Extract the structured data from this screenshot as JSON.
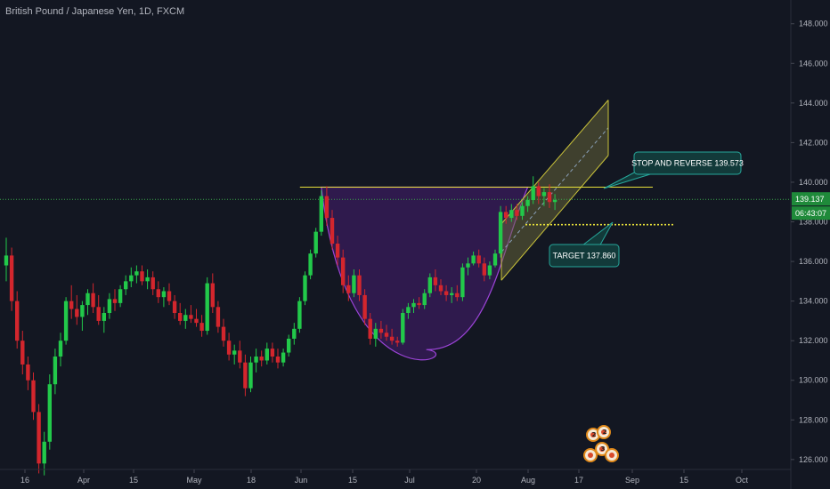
{
  "header": {
    "title": "British Pound / Japanese Yen, 1D, FXCM"
  },
  "colors": {
    "background": "#131722",
    "up": "#26a69a",
    "up_bright": "#22c94a",
    "down": "#ef5350",
    "down_dark": "#d3262d",
    "grid": "#1e222d",
    "cup_fill": "#3a1c5c",
    "cup_stroke": "#9c44d8",
    "channel_fill": "#6b6a3a",
    "channel_stroke": "#c9c23a",
    "resistance": "#e8e13a",
    "target_dotted": "#e8e13a",
    "current_price_line": "#3aa84a",
    "badge_green": "#1f8a3a",
    "callout_bg": "#123a3a",
    "callout_border": "#26a69a"
  },
  "chart_data": {
    "type": "candlestick",
    "y_axis": {
      "ticks": [
        "148.000",
        "146.000",
        "144.000",
        "142.000",
        "140.000",
        "138.000",
        "136.000",
        "134.000",
        "132.000",
        "130.000",
        "128.000",
        "126.000"
      ],
      "range": [
        125.5,
        149.2
      ]
    },
    "x_axis": {
      "ticks": [
        "16",
        "Apr",
        "15",
        "May",
        "18",
        "Jun",
        "15",
        "Jul",
        "20",
        "Aug",
        "17",
        "Sep",
        "15",
        "Oct"
      ]
    },
    "current_price": {
      "value": 139.137,
      "label": "139.137",
      "countdown": "06:43:07"
    },
    "annotations": {
      "stop_and_reverse": {
        "label": "STOP AND REVERSE 139.573",
        "value": 139.573
      },
      "target": {
        "label": "TARGET 137.860",
        "value": 137.86
      },
      "resistance_level": 139.75
    },
    "candles_ohlc": [
      [
        135.8,
        137.2,
        135.0,
        136.3
      ],
      [
        136.3,
        136.7,
        133.5,
        134.0
      ],
      [
        134.0,
        134.5,
        131.6,
        132.0
      ],
      [
        132.0,
        132.5,
        130.3,
        130.8
      ],
      [
        130.8,
        131.2,
        129.5,
        130.0
      ],
      [
        130.0,
        130.4,
        128.0,
        128.4
      ],
      [
        128.4,
        128.8,
        125.3,
        125.8
      ],
      [
        125.8,
        127.4,
        125.2,
        126.9
      ],
      [
        126.9,
        130.3,
        126.5,
        129.8
      ],
      [
        129.8,
        131.6,
        129.3,
        131.2
      ],
      [
        131.2,
        132.4,
        130.7,
        132.0
      ],
      [
        132.0,
        134.2,
        131.8,
        134.0
      ],
      [
        134.0,
        134.8,
        133.1,
        133.6
      ],
      [
        133.6,
        134.3,
        132.8,
        133.2
      ],
      [
        133.2,
        134.0,
        132.5,
        133.8
      ],
      [
        133.8,
        134.6,
        133.3,
        134.4
      ],
      [
        134.4,
        134.9,
        133.4,
        133.7
      ],
      [
        133.7,
        134.3,
        132.8,
        133.0
      ],
      [
        133.0,
        133.7,
        132.4,
        133.4
      ],
      [
        133.4,
        134.4,
        133.1,
        134.1
      ],
      [
        134.1,
        134.6,
        133.5,
        133.9
      ],
      [
        133.9,
        134.8,
        133.7,
        134.6
      ],
      [
        134.6,
        135.3,
        134.3,
        135.0
      ],
      [
        135.0,
        135.7,
        134.7,
        135.3
      ],
      [
        135.3,
        135.8,
        134.9,
        135.5
      ],
      [
        135.5,
        135.8,
        134.8,
        135.0
      ],
      [
        135.0,
        135.6,
        134.6,
        135.2
      ],
      [
        135.2,
        135.5,
        134.3,
        134.6
      ],
      [
        134.6,
        135.0,
        133.9,
        134.2
      ],
      [
        134.2,
        134.7,
        133.7,
        134.5
      ],
      [
        134.5,
        134.9,
        133.8,
        134.0
      ],
      [
        134.0,
        134.3,
        133.1,
        133.4
      ],
      [
        133.4,
        133.9,
        132.8,
        133.0
      ],
      [
        133.0,
        133.6,
        132.6,
        133.3
      ],
      [
        133.3,
        133.8,
        132.9,
        133.1
      ],
      [
        133.1,
        133.6,
        132.7,
        132.9
      ],
      [
        132.9,
        133.3,
        132.2,
        132.5
      ],
      [
        132.5,
        135.2,
        132.3,
        134.9
      ],
      [
        134.9,
        135.4,
        133.4,
        133.7
      ],
      [
        133.7,
        134.0,
        132.4,
        132.7
      ],
      [
        132.7,
        133.1,
        131.7,
        132.0
      ],
      [
        132.0,
        132.4,
        131.0,
        131.3
      ],
      [
        131.3,
        131.8,
        130.8,
        131.5
      ],
      [
        131.5,
        132.0,
        130.6,
        130.9
      ],
      [
        130.9,
        131.3,
        129.2,
        129.6
      ],
      [
        129.6,
        131.2,
        129.4,
        130.9
      ],
      [
        130.9,
        131.6,
        130.4,
        131.2
      ],
      [
        131.2,
        131.5,
        130.7,
        131.0
      ],
      [
        131.0,
        131.9,
        130.8,
        131.6
      ],
      [
        131.6,
        131.9,
        130.9,
        131.2
      ],
      [
        131.2,
        131.6,
        130.6,
        130.9
      ],
      [
        130.9,
        131.6,
        130.7,
        131.4
      ],
      [
        131.4,
        132.3,
        131.2,
        132.1
      ],
      [
        132.1,
        132.9,
        131.8,
        132.6
      ],
      [
        132.6,
        134.2,
        132.4,
        134.0
      ],
      [
        134.0,
        135.5,
        133.8,
        135.3
      ],
      [
        135.3,
        136.6,
        135.1,
        136.4
      ],
      [
        136.4,
        137.7,
        136.2,
        137.5
      ],
      [
        137.5,
        139.6,
        137.3,
        139.3
      ],
      [
        139.3,
        139.8,
        137.8,
        138.2
      ],
      [
        138.2,
        138.6,
        136.6,
        136.9
      ],
      [
        136.9,
        137.3,
        135.8,
        136.2
      ],
      [
        136.2,
        136.6,
        134.4,
        134.8
      ],
      [
        134.8,
        135.3,
        134.0,
        134.4
      ],
      [
        134.4,
        135.6,
        134.2,
        135.3
      ],
      [
        135.3,
        135.6,
        134.0,
        134.3
      ],
      [
        134.3,
        134.6,
        132.8,
        133.1
      ],
      [
        133.1,
        133.4,
        131.8,
        132.1
      ],
      [
        132.1,
        132.9,
        131.7,
        132.6
      ],
      [
        132.6,
        133.0,
        132.1,
        132.4
      ],
      [
        132.4,
        132.8,
        132.0,
        132.2
      ],
      [
        132.2,
        132.6,
        131.8,
        132.0
      ],
      [
        132.0,
        132.2,
        131.7,
        131.9
      ],
      [
        131.9,
        133.6,
        131.8,
        133.4
      ],
      [
        133.4,
        133.9,
        133.1,
        133.7
      ],
      [
        133.7,
        134.1,
        133.4,
        133.9
      ],
      [
        133.9,
        134.2,
        133.6,
        133.8
      ],
      [
        133.8,
        134.6,
        133.6,
        134.4
      ],
      [
        134.4,
        135.4,
        134.2,
        135.2
      ],
      [
        135.2,
        135.6,
        134.5,
        134.8
      ],
      [
        134.8,
        135.1,
        134.3,
        134.5
      ],
      [
        134.5,
        134.8,
        134.0,
        134.3
      ],
      [
        134.3,
        134.7,
        133.9,
        134.4
      ],
      [
        134.4,
        134.8,
        134.0,
        134.2
      ],
      [
        134.2,
        135.9,
        134.0,
        135.7
      ],
      [
        135.7,
        136.2,
        135.3,
        135.9
      ],
      [
        135.9,
        136.5,
        135.8,
        136.3
      ],
      [
        136.3,
        136.6,
        135.7,
        135.9
      ],
      [
        135.9,
        136.2,
        135.0,
        135.3
      ],
      [
        135.3,
        136.0,
        135.1,
        135.8
      ],
      [
        135.8,
        136.6,
        135.7,
        136.4
      ],
      [
        136.4,
        138.8,
        136.2,
        138.5
      ],
      [
        138.5,
        138.8,
        137.9,
        138.2
      ],
      [
        138.2,
        138.9,
        138.0,
        138.6
      ],
      [
        138.6,
        138.9,
        138.1,
        138.3
      ],
      [
        138.3,
        139.0,
        138.1,
        138.8
      ],
      [
        138.8,
        139.3,
        138.5,
        139.1
      ],
      [
        139.1,
        140.3,
        138.9,
        139.8
      ],
      [
        139.8,
        140.0,
        138.9,
        139.3
      ],
      [
        139.3,
        139.7,
        138.8,
        139.5
      ],
      [
        139.5,
        139.9,
        138.7,
        139.0
      ],
      [
        139.0,
        139.4,
        138.6,
        139.1
      ]
    ]
  },
  "emoji_labels": [
    "2",
    "3"
  ]
}
